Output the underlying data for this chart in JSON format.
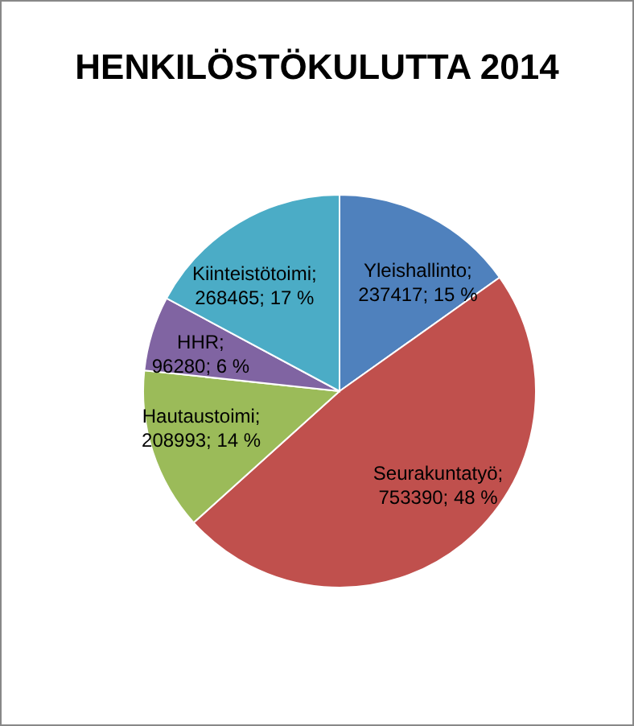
{
  "chart_data": {
    "type": "pie",
    "title": "HENKILÖSTÖKULUTTA 2014",
    "categories": [
      "Yleishallinto",
      "Seurakuntatyö",
      "Hautaustoimi",
      "HHR",
      "Kiinteistötoimi"
    ],
    "values": [
      237417,
      753390,
      208993,
      96280,
      268465
    ],
    "value_labels": [
      "; 237417; 15 %",
      "; 753390; 48 %",
      "; 208993; 14 %",
      "; 96280; 6 %",
      "; 268465; 17 %"
    ],
    "colors": [
      "#4f81bd",
      "#c0504d",
      "#9bbb59",
      "#8064a2",
      "#4bacc6"
    ],
    "legend": false
  }
}
